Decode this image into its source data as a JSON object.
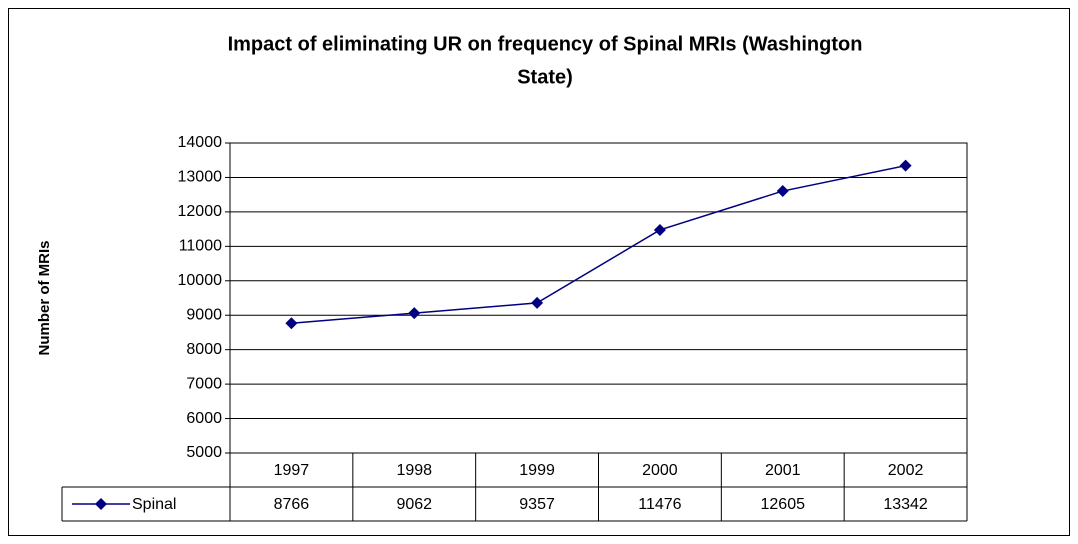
{
  "chart_data": {
    "type": "line",
    "title": [
      "Impact of eliminating UR on frequency of Spinal MRIs (Washington",
      "State)"
    ],
    "y_label": "Number of MRIs",
    "categories": [
      "1997",
      "1998",
      "1999",
      "2000",
      "2001",
      "2002"
    ],
    "series": [
      {
        "name": "Spinal",
        "color": "#000080",
        "values": [
          8766,
          9062,
          9357,
          11476,
          12605,
          13342
        ]
      }
    ],
    "ylim": [
      5000,
      14000
    ],
    "yticks": [
      5000,
      6000,
      7000,
      8000,
      9000,
      10000,
      11000,
      12000,
      13000,
      14000
    ],
    "grid": true,
    "data_table": true
  }
}
